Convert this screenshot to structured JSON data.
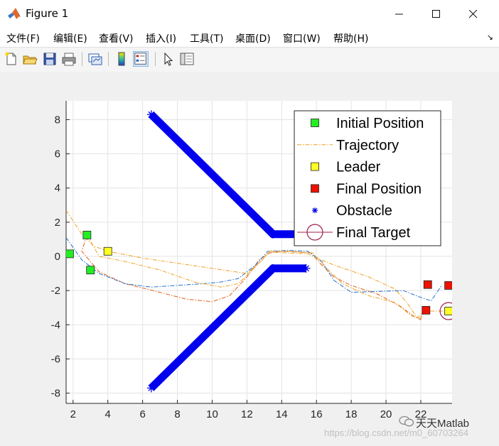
{
  "window": {
    "title": "Figure 1",
    "minimize_icon": "minimize-icon",
    "maximize_icon": "maximize-icon",
    "close_icon": "close-icon"
  },
  "menu": {
    "items": [
      "文件(F)",
      "编辑(E)",
      "查看(V)",
      "插入(I)",
      "工具(T)",
      "桌面(D)",
      "窗口(W)",
      "帮助(H)"
    ]
  },
  "toolbar": {
    "icons": [
      "new-figure-icon",
      "open-file-icon",
      "save-icon",
      "print-icon",
      "link-plot-icon",
      "insert-colorbar-icon",
      "insert-legend-icon",
      "edit-plot-icon",
      "property-inspector-icon"
    ]
  },
  "watermark": {
    "brand": "天天Matlab",
    "url": "https://blog.csdn.net/m0_60703264"
  },
  "chart_data": {
    "type": "line",
    "xlim": [
      1.6,
      23.8
    ],
    "ylim": [
      -8.6,
      9.1
    ],
    "xticks": [
      2,
      4,
      6,
      8,
      10,
      12,
      14,
      16,
      18,
      20,
      22
    ],
    "yticks": [
      8,
      6,
      4,
      2,
      0,
      -2,
      -4,
      -6,
      -8
    ],
    "grid": true,
    "legend_position": "top-right",
    "legend": [
      "Initial Position",
      "Trajectory",
      "Leader",
      "Final Position",
      "Obstacle",
      "Final Target"
    ],
    "colors": {
      "initial": "#22ee22",
      "leader": "#ffff22",
      "final": "#ee1100",
      "obstacle": "#0000ee",
      "target": "#a0204a",
      "traj_orange": "#e0601c",
      "traj_blue": "#1f6fd0",
      "traj_gold": "#f0a020"
    },
    "initial_positions": [
      [
        1.8,
        0.15
      ],
      [
        2.8,
        1.25
      ],
      [
        3.0,
        -0.8
      ]
    ],
    "leader_start": [
      4.0,
      0.3
    ],
    "final_positions": [
      [
        22.4,
        -1.65
      ],
      [
        22.3,
        -3.15
      ],
      [
        23.6,
        -1.7
      ]
    ],
    "leader_end": [
      23.6,
      -3.2
    ],
    "final_target": [
      23.6,
      -3.2
    ],
    "obstacles": [
      {
        "points": [
          [
            6.5,
            8.3
          ],
          [
            13.5,
            1.3
          ],
          [
            15.4,
            1.3
          ]
        ]
      },
      {
        "points": [
          [
            6.5,
            -7.7
          ],
          [
            13.5,
            -0.7
          ],
          [
            15.4,
            -0.7
          ]
        ]
      }
    ],
    "trajectories": [
      {
        "style": "dashdot",
        "color": "#e0601c",
        "points": [
          [
            2.8,
            1.25
          ],
          [
            2.5,
            0.3
          ],
          [
            3.5,
            -0.9
          ],
          [
            5,
            -1.6
          ],
          [
            7,
            -2.1
          ],
          [
            8.5,
            -2.5
          ],
          [
            10,
            -2.65
          ],
          [
            11,
            -2.3
          ],
          [
            12,
            -1.2
          ],
          [
            12.7,
            -0.2
          ],
          [
            13.3,
            0.2
          ],
          [
            14,
            0.3
          ],
          [
            15,
            0.25
          ],
          [
            15.7,
            0.2
          ],
          [
            16.2,
            -0.4
          ],
          [
            17,
            -1.2
          ],
          [
            18,
            -1.7
          ],
          [
            19.5,
            -2.2
          ],
          [
            20.8,
            -2.9
          ],
          [
            21.6,
            -3.5
          ],
          [
            22,
            -3.7
          ],
          [
            22.1,
            -3.2
          ],
          [
            22.3,
            -3.15
          ]
        ]
      },
      {
        "style": "dashdot",
        "color": "#1f6fd0",
        "points": [
          [
            1.6,
            1.1
          ],
          [
            2.5,
            -0.2
          ],
          [
            3.5,
            -1.0
          ],
          [
            5,
            -1.6
          ],
          [
            6.5,
            -1.8
          ],
          [
            8,
            -1.7
          ],
          [
            9.5,
            -1.6
          ],
          [
            10.5,
            -1.5
          ],
          [
            11.5,
            -1.3
          ],
          [
            12.5,
            -0.5
          ],
          [
            13.2,
            0.3
          ],
          [
            14.5,
            0.35
          ],
          [
            15.5,
            0.3
          ],
          [
            16.3,
            -0.3
          ],
          [
            17,
            -1.4
          ],
          [
            18,
            -2.1
          ],
          [
            19.5,
            -2.05
          ],
          [
            21,
            -2.0
          ],
          [
            22,
            -2.4
          ],
          [
            22.6,
            -2.6
          ],
          [
            23,
            -2.0
          ],
          [
            23.2,
            -1.7
          ]
        ]
      },
      {
        "style": "dashdot",
        "color": "#f0a020",
        "points": [
          [
            1.6,
            2.7
          ],
          [
            2.5,
            1.3
          ],
          [
            3.2,
            0.6
          ],
          [
            4,
            0.3
          ],
          [
            6,
            -0.1
          ],
          [
            8,
            -0.4
          ],
          [
            10,
            -0.7
          ],
          [
            12,
            -1.0
          ],
          [
            12.8,
            -0.3
          ],
          [
            13.3,
            0.25
          ],
          [
            14.5,
            0.2
          ],
          [
            15.5,
            0.15
          ],
          [
            16,
            -0.1
          ],
          [
            17,
            -0.5
          ],
          [
            19,
            -1.2
          ],
          [
            20.5,
            -1.9
          ],
          [
            21.2,
            -2.7
          ],
          [
            21.8,
            -3.6
          ],
          [
            22,
            -3.4
          ],
          [
            22.5,
            -3.2
          ],
          [
            23.6,
            -3.2
          ]
        ]
      },
      {
        "style": "dashdot",
        "color": "#f0a020",
        "points": [
          [
            2.8,
            1.25
          ],
          [
            3.5,
            0.0
          ],
          [
            5,
            -0.3
          ],
          [
            7,
            -0.8
          ],
          [
            9,
            -1.5
          ],
          [
            10.5,
            -1.8
          ],
          [
            11.5,
            -1.6
          ],
          [
            12.5,
            -0.6
          ],
          [
            13.3,
            0.3
          ],
          [
            14.5,
            0.3
          ],
          [
            15.8,
            0.2
          ],
          [
            16.5,
            -0.6
          ],
          [
            17.5,
            -1.6
          ],
          [
            19,
            -2.3
          ],
          [
            20.5,
            -2.7
          ],
          [
            21.5,
            -3.5
          ],
          [
            22,
            -3.6
          ],
          [
            22.3,
            -3.15
          ]
        ]
      }
    ]
  }
}
